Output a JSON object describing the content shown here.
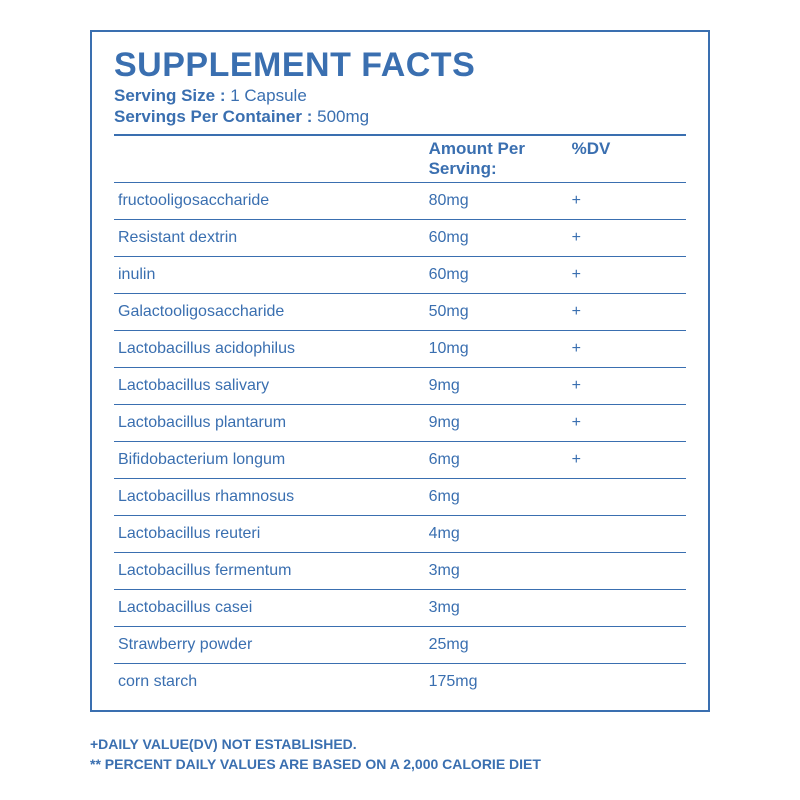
{
  "title": "SUPPLEMENT FACTS",
  "title_fontsize": 34,
  "label_fontsize": 17,
  "body_fontsize": 16,
  "foot_fontsize": 14,
  "text_color": "#3a6fb0",
  "border_color": "#3a6fb0",
  "background_color": "#ffffff",
  "serving_size_label": "Serving Size :",
  "serving_size_value": "1 Capsule",
  "servings_per_container_label": "Servings Per Container :",
  "servings_per_container_value": "500mg",
  "col_amount_label": "Amount Per Serving:",
  "col_dv_label": "%DV",
  "rows": [
    {
      "name": "fructooligosaccharide",
      "amount": "80mg",
      "dv": "+"
    },
    {
      "name": "Resistant dextrin",
      "amount": "60mg",
      "dv": "+"
    },
    {
      "name": "inulin",
      "amount": "60mg",
      "dv": "+"
    },
    {
      "name": "Galactooligosaccharide",
      "amount": "50mg",
      "dv": "+"
    },
    {
      "name": "Lactobacillus acidophilus",
      "amount": "10mg",
      "dv": "+"
    },
    {
      "name": "Lactobacillus salivary",
      "amount": "9mg",
      "dv": "+"
    },
    {
      "name": "Lactobacillus plantarum",
      "amount": "9mg",
      "dv": "+"
    },
    {
      "name": "Bifidobacterium longum",
      "amount": "6mg",
      "dv": "+"
    },
    {
      "name": "Lactobacillus rhamnosus",
      "amount": "6mg",
      "dv": ""
    },
    {
      "name": "Lactobacillus reuteri",
      "amount": "4mg",
      "dv": ""
    },
    {
      "name": "Lactobacillus fermentum",
      "amount": "3mg",
      "dv": ""
    },
    {
      "name": "Lactobacillus casei",
      "amount": "3mg",
      "dv": ""
    },
    {
      "name": "Strawberry powder",
      "amount": "25mg",
      "dv": ""
    },
    {
      "name": "corn starch",
      "amount": "175mg",
      "dv": ""
    }
  ],
  "footnote1": "+DAILY VALUE(DV) NOT ESTABLISHED.",
  "footnote2": "** PERCENT DAILY VALUES ARE BASED ON A 2,000 CALORIE DIET"
}
